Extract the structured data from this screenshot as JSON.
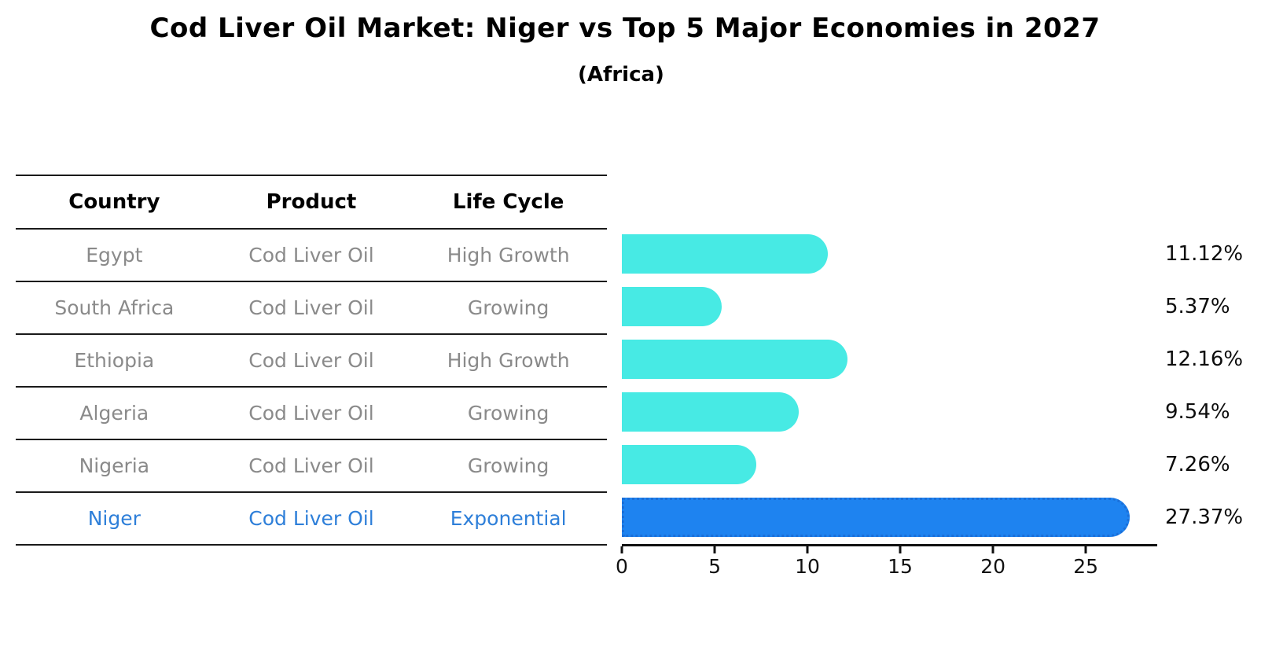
{
  "header": {
    "title": "Cod Liver Oil Market: Niger vs Top 5 Major Economies in 2027",
    "subtitle": "(Africa)"
  },
  "table": {
    "headers": [
      "Country",
      "Product",
      "Life Cycle"
    ],
    "rows": [
      {
        "country": "Egypt",
        "product": "Cod Liver Oil",
        "life_cycle": "High Growth",
        "share": "11.12%",
        "highlight": false
      },
      {
        "country": "South Africa",
        "product": "Cod Liver Oil",
        "life_cycle": "Growing",
        "share": "5.37%",
        "highlight": false
      },
      {
        "country": "Ethiopia",
        "product": "Cod Liver Oil",
        "life_cycle": "High Growth",
        "share": "12.16%",
        "highlight": false
      },
      {
        "country": "Algeria",
        "product": "Cod Liver Oil",
        "life_cycle": "Growing",
        "share": "9.54%",
        "highlight": false
      },
      {
        "country": "Nigeria",
        "product": "Cod Liver Oil",
        "life_cycle": "Growing",
        "share": "7.26%",
        "highlight": false
      },
      {
        "country": "Niger",
        "product": "Cod Liver Oil",
        "life_cycle": "Exponential",
        "share": "27.37%",
        "highlight": true
      }
    ]
  },
  "chart_data": {
    "type": "bar",
    "orientation": "horizontal",
    "title": "Cod Liver Oil Market: Niger vs Top 5 Major Economies in 2027",
    "subtitle": "(Africa)",
    "categories": [
      "Egypt",
      "South Africa",
      "Ethiopia",
      "Algeria",
      "Nigeria",
      "Niger"
    ],
    "values": [
      11.12,
      5.37,
      12.16,
      9.54,
      7.26,
      27.37
    ],
    "value_labels": [
      "11.12%",
      "5.37%",
      "12.16%",
      "9.54%",
      "7.26%",
      "27.37%"
    ],
    "unit": "percent",
    "xticks": [
      0,
      5,
      10,
      15,
      20,
      25
    ],
    "xlim": [
      0,
      28.85
    ],
    "grid": false,
    "legend": false,
    "bar_colors": [
      "#47EAE4",
      "#47EAE4",
      "#47EAE4",
      "#47EAE4",
      "#47EAE4",
      "#1E83F0"
    ],
    "highlight_index": 5
  },
  "colors": {
    "bar_turquoise": "#47EAE4",
    "bar_blue": "#1E83F0",
    "accent_text": "#2E7FD9",
    "accent_border": "#1B6FD8",
    "muted_text": "#8A8A8A",
    "axis": "#111111"
  }
}
